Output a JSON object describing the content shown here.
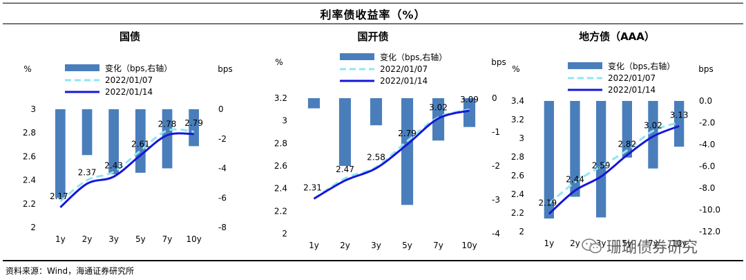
{
  "header": {
    "title": "利率债收益率（%）"
  },
  "footer": {
    "source": "资料来源：Wind，海通证券研究所",
    "watermark": "珊瑚债券研究"
  },
  "chart_data": [
    {
      "type": "bar+line",
      "title": "国债",
      "categories": [
        "1y",
        "2y",
        "3y",
        "5y",
        "7y",
        "10y"
      ],
      "y_left_label": "%",
      "y_right_label": "bps",
      "ylim_left": [
        2,
        3
      ],
      "ylim_right": [
        -8,
        0
      ],
      "y_left_ticks": [
        "2",
        "2.2",
        "2.4",
        "2.6",
        "2.8",
        "3"
      ],
      "y_right_ticks": [
        "0",
        "-2",
        "-4",
        "-6",
        "-8"
      ],
      "legend": [
        "变化（bps,右轴）",
        "2022/01/07",
        "2022/01/14"
      ],
      "change_bps": [
        -6.0,
        -3.1,
        -4.4,
        -4.3,
        -4.0,
        -2.5
      ],
      "series_0107": [
        2.22,
        2.4,
        2.47,
        2.65,
        2.82,
        2.81
      ],
      "series_0114": [
        2.17,
        2.37,
        2.43,
        2.61,
        2.78,
        2.79
      ],
      "labels": [
        "2.17",
        "2.37",
        "2.43",
        "2.61",
        "2.78",
        "2.79"
      ]
    },
    {
      "type": "bar+line",
      "title": "国开债",
      "categories": [
        "1y",
        "2y",
        "3y",
        "5y",
        "7y",
        "10y"
      ],
      "y_left_label": "%",
      "y_right_label": "bps",
      "ylim_left": [
        2,
        3.2
      ],
      "ylim_right": [
        -4,
        0
      ],
      "y_left_ticks": [
        "2",
        "2.2",
        "2.4",
        "2.6",
        "2.8",
        "3",
        "3.2"
      ],
      "y_right_ticks": [
        "0",
        "-1",
        "-2",
        "-3",
        "-4"
      ],
      "legend": [
        "变化（bps,右轴）",
        "2022/01/07",
        "2022/01/14"
      ],
      "change_bps": [
        -0.3,
        -2.0,
        -0.8,
        -3.15,
        -1.25,
        -0.85
      ],
      "series_0107": [
        2.31,
        2.49,
        2.59,
        2.82,
        3.03,
        3.1
      ],
      "series_0114": [
        2.31,
        2.47,
        2.58,
        2.79,
        3.02,
        3.09
      ],
      "labels": [
        "2.31",
        "2.47",
        "2.58",
        "2.79",
        "3.02",
        "3.09"
      ]
    },
    {
      "type": "bar+line",
      "title": "地方债（AAA）",
      "categories": [
        "1y",
        "2y",
        "3y",
        "5y",
        "7y",
        "10y"
      ],
      "y_left_label": "%",
      "y_right_label": "bps",
      "ylim_left": [
        2,
        3.4
      ],
      "ylim_right": [
        -12,
        0
      ],
      "y_left_ticks": [
        "2",
        "2.2",
        "2.4",
        "2.6",
        "2.8",
        "3",
        "3.2",
        "3.4"
      ],
      "y_right_ticks": [
        "0.0",
        "-2.0",
        "-4.0",
        "-6.0",
        "-8.0",
        "-10.0",
        "-12.0"
      ],
      "legend": [
        "变化（bps,右轴）",
        "2022/01/07",
        "2022/01/14"
      ],
      "change_bps": [
        -10.8,
        -8.8,
        -10.7,
        -5.2,
        -6.2,
        -4.2
      ],
      "series_0107": [
        2.3,
        2.53,
        2.7,
        2.87,
        3.08,
        3.17
      ],
      "series_0114": [
        2.19,
        2.44,
        2.59,
        2.82,
        3.02,
        3.13
      ],
      "labels": [
        "2.19",
        "2.44",
        "2.59",
        "2.82",
        "3.02",
        "3.13"
      ]
    }
  ]
}
